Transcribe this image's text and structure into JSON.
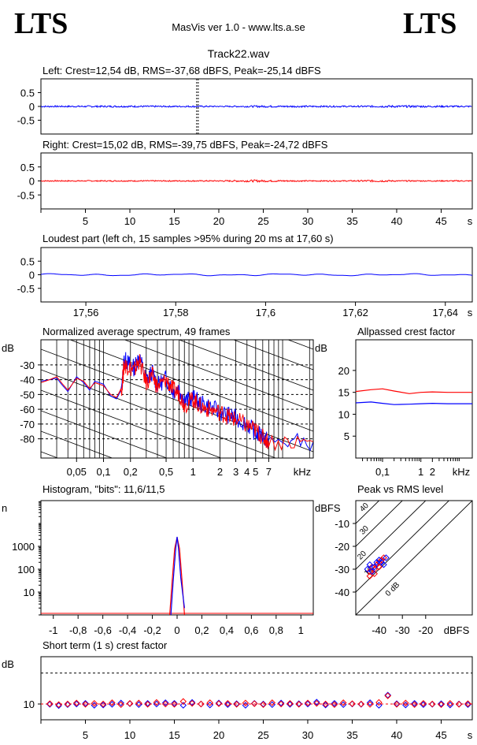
{
  "header": {
    "logo_left": "LTS",
    "logo_right": "LTS",
    "app_title": "MasVis ver 1.0 - www.lts.a.se",
    "file_name": "Track22.wav"
  },
  "chart_data": [
    {
      "type": "line",
      "id": "left",
      "title": "Left: Crest=12,54 dB, RMS=-37,68 dBFS, Peak=-25,14 dBFS",
      "yticks": [
        0.5,
        0,
        -0.5
      ],
      "ytick_labels": [
        "0.5",
        "0",
        "-0.5"
      ],
      "ylim": [
        -1,
        1
      ],
      "xlim": [
        0,
        48.5
      ],
      "envelope": {
        "x": [
          0,
          5,
          10,
          15,
          17.6,
          20,
          25,
          30,
          35,
          40,
          45,
          48.5
        ],
        "amp": [
          0.025,
          0.03,
          0.03,
          0.025,
          0.03,
          0.02,
          0.035,
          0.03,
          0.025,
          0.04,
          0.03,
          0.025
        ]
      },
      "marker_x": 17.6,
      "color": "#0000ff"
    },
    {
      "type": "line",
      "id": "right",
      "title": "Right: Crest=15,02 dB, RMS=-39,75 dBFS, Peak=-24,72 dBFS",
      "yticks": [
        0.5,
        0,
        -0.5
      ],
      "ytick_labels": [
        "0.5",
        "0",
        "-0.5"
      ],
      "ylim": [
        -1,
        1
      ],
      "xlim": [
        0,
        48.5
      ],
      "xticks": [
        5,
        10,
        15,
        20,
        25,
        30,
        35,
        40,
        45
      ],
      "xtick_labels": [
        "5",
        "10",
        "15",
        "20",
        "25",
        "30",
        "35",
        "40",
        "45"
      ],
      "xunit": "s",
      "envelope": {
        "x": [
          0,
          5,
          10,
          15,
          20,
          24,
          25,
          30,
          35,
          38,
          40,
          45,
          48.5
        ],
        "amp": [
          0.02,
          0.02,
          0.02,
          0.02,
          0.02,
          0.04,
          0.035,
          0.02,
          0.02,
          0.04,
          0.02,
          0.02,
          0.02
        ]
      },
      "color": "#ff0000"
    },
    {
      "type": "line",
      "id": "loudest",
      "title": "Loudest part (left  ch, 15 samples >95% during 20 ms at 17,60 s)",
      "yticks": [
        0.5,
        0,
        -0.5
      ],
      "ytick_labels": [
        "0.5",
        "0",
        "-0.5"
      ],
      "ylim": [
        -1,
        1
      ],
      "xlim": [
        17.55,
        17.646
      ],
      "xticks": [
        17.56,
        17.58,
        17.6,
        17.62,
        17.64
      ],
      "xtick_labels": [
        "17,56",
        "17,58",
        "17,6",
        "17,62",
        "17,64"
      ],
      "xunit": "s",
      "color": "#0000ff"
    },
    {
      "type": "line",
      "id": "spectrum",
      "title": "Normalized average spectrum, 49 frames",
      "ylabel": "dB",
      "yticks": [
        -30,
        -40,
        -50,
        -60,
        -70,
        -80
      ],
      "ytick_labels": [
        "-30",
        "-40",
        "-50",
        "-60",
        "-70",
        "-80"
      ],
      "ylim": [
        -93,
        -13
      ],
      "xscale": "log",
      "xlim": [
        0.02,
        22
      ],
      "xticks": [
        0.05,
        0.1,
        0.2,
        0.5,
        1,
        2,
        3,
        4,
        5,
        7
      ],
      "xtick_labels": [
        "0,05",
        "0,1",
        "0,2",
        "0,5",
        "1",
        "2",
        "3",
        "4",
        "5",
        "7"
      ],
      "xunit": "kHz",
      "series": [
        {
          "color": "#0000ff",
          "x": [
            0.02,
            0.025,
            0.03,
            0.035,
            0.04,
            0.05,
            0.06,
            0.07,
            0.08,
            0.1,
            0.12,
            0.14,
            0.16,
            0.17,
            0.19,
            0.22,
            0.25,
            0.3,
            0.35,
            0.4,
            0.5,
            0.6,
            0.7,
            0.8,
            1.0,
            1.2,
            1.5,
            2.0,
            2.5,
            3.0,
            4.0,
            5.0,
            6.0,
            7.0,
            22
          ],
          "y": [
            -41,
            -40,
            -39,
            -44,
            -48,
            -38,
            -42,
            -47,
            -41,
            -43,
            -51,
            -53,
            -46,
            -26,
            -29,
            -32,
            -24,
            -40,
            -35,
            -44,
            -39,
            -48,
            -46,
            -55,
            -52,
            -56,
            -58,
            -62,
            -64,
            -66,
            -70,
            -76,
            -78,
            -82,
            -82
          ]
        },
        {
          "color": "#ff0000",
          "x": [
            0.02,
            0.025,
            0.03,
            0.035,
            0.04,
            0.05,
            0.06,
            0.07,
            0.08,
            0.1,
            0.12,
            0.14,
            0.16,
            0.17,
            0.19,
            0.22,
            0.25,
            0.3,
            0.35,
            0.4,
            0.5,
            0.6,
            0.7,
            0.8,
            1.0,
            1.2,
            1.5,
            2.0,
            2.5,
            3.0,
            4.0,
            5.0,
            6.0,
            7.0,
            22
          ],
          "y": [
            -42,
            -40,
            -38,
            -43,
            -47,
            -39,
            -41,
            -46,
            -42,
            -44,
            -50,
            -52,
            -45,
            -30,
            -31,
            -34,
            -27,
            -42,
            -37,
            -45,
            -40,
            -47,
            -49,
            -57,
            -53,
            -58,
            -60,
            -62,
            -65,
            -67,
            -71,
            -74,
            -79,
            -82,
            -82
          ]
        }
      ]
    },
    {
      "type": "line",
      "id": "allpass",
      "title": "Allpassed crest factor",
      "ylabel": "dB",
      "yticks": [
        20,
        15,
        10,
        5
      ],
      "ytick_labels": [
        "20",
        "15",
        "10",
        "5"
      ],
      "ylim": [
        0,
        27
      ],
      "xscale": "log",
      "xlim": [
        0.02,
        22
      ],
      "xticks": [
        0.1,
        1,
        2
      ],
      "xtick_labels": [
        "0,1",
        "1",
        "2"
      ],
      "xunit": "kHz",
      "series": [
        {
          "color": "#ff0000",
          "x": [
            0.02,
            0.05,
            0.1,
            0.2,
            0.5,
            1,
            2,
            5,
            22
          ],
          "y": [
            15.2,
            15.6,
            15.8,
            15.3,
            14.7,
            15.0,
            15.1,
            15.0,
            15.0
          ]
        },
        {
          "color": "#0000ff",
          "x": [
            0.02,
            0.05,
            0.1,
            0.2,
            0.5,
            1,
            2,
            5,
            22
          ],
          "y": [
            12.6,
            12.8,
            12.5,
            12.2,
            12.3,
            12.4,
            12.5,
            12.4,
            12.4
          ]
        }
      ]
    },
    {
      "type": "line",
      "id": "histogram",
      "title": "Histogram, \"bits\": 11,6/11,5",
      "ylabel": "n",
      "yscale": "log",
      "yticks": [
        1000,
        100,
        10
      ],
      "ytick_labels": [
        "1000",
        "100",
        "10"
      ],
      "ylim": [
        1,
        100000
      ],
      "xlim": [
        -1.1,
        1.1
      ],
      "xticks": [
        -1,
        -0.8,
        -0.6,
        -0.4,
        -0.2,
        0,
        0.2,
        0.4,
        0.6,
        0.8,
        1
      ],
      "xtick_labels": [
        "-1",
        "-0,8",
        "-0,6",
        "-0,4",
        "-0,2",
        "0",
        "0,2",
        "0,4",
        "0,6",
        "0,8",
        "1"
      ],
      "series": [
        {
          "color": "#ff0000",
          "x": [
            -0.06,
            -0.04,
            -0.02,
            0,
            0.02,
            0.04,
            0.06
          ],
          "y": [
            1,
            30,
            800,
            2500,
            800,
            30,
            1
          ]
        },
        {
          "color": "#0000ff",
          "x": [
            -0.05,
            -0.03,
            -0.01,
            0,
            0.01,
            0.03,
            0.06
          ],
          "y": [
            1,
            40,
            900,
            2600,
            900,
            40,
            2
          ]
        }
      ]
    },
    {
      "type": "scatter",
      "id": "peak_vs_rms",
      "title": "Peak vs RMS level",
      "ylabel": "dBFS",
      "xunit": "dBFS",
      "yticks": [
        -10,
        -20,
        -30,
        -40
      ],
      "ytick_labels": [
        "-10",
        "-20",
        "-30",
        "-40"
      ],
      "ylim": [
        -50,
        0
      ],
      "xticks": [
        -40,
        -30,
        -20
      ],
      "xtick_labels": [
        "-40",
        "-30",
        "-20"
      ],
      "xlim": [
        -50,
        0
      ],
      "diag_labels": [
        "40",
        "30",
        "20",
        "10",
        "0 dB"
      ],
      "series": [
        {
          "color": "#ff0000",
          "x": [
            -44,
            -43,
            -42,
            -41,
            -40,
            -39,
            -38,
            -40,
            -42,
            -44
          ],
          "y": [
            -31,
            -29,
            -30,
            -28,
            -27,
            -26,
            -25,
            -29,
            -32,
            -33
          ]
        },
        {
          "color": "#0000ff",
          "x": [
            -45,
            -44,
            -43,
            -42,
            -41,
            -40,
            -39,
            -38,
            -37
          ],
          "y": [
            -30,
            -28,
            -31,
            -29,
            -27,
            -26,
            -27,
            -28,
            -25
          ]
        }
      ]
    },
    {
      "type": "scatter",
      "id": "short_term_crest",
      "title": "Short term (1 s) crest factor",
      "ylabel": "dB",
      "yticks": [
        10
      ],
      "ytick_labels": [
        "10"
      ],
      "ylim": [
        5,
        25
      ],
      "xlim": [
        0,
        48.5
      ],
      "xticks": [
        5,
        10,
        15,
        20,
        25,
        30,
        35,
        40,
        45
      ],
      "xtick_labels": [
        "5",
        "10",
        "15",
        "20",
        "25",
        "30",
        "35",
        "40",
        "45"
      ],
      "xunit": "s",
      "series": [
        {
          "color": "#0000ff",
          "x": [
            1,
            2,
            3,
            4,
            5,
            6,
            7,
            8,
            9,
            10,
            11,
            12,
            13,
            14,
            15,
            16,
            17,
            18,
            19,
            20,
            21,
            22,
            23,
            24,
            25,
            26,
            27,
            28,
            29,
            30,
            31,
            32,
            33,
            34,
            35,
            36,
            37,
            38,
            39,
            40,
            41,
            42,
            43,
            44,
            45,
            46,
            47,
            48
          ],
          "y": [
            9.9,
            9.5,
            9.8,
            10.0,
            10.2,
            9.6,
            9.7,
            9.9,
            10.3,
            10.1,
            9.8,
            10.2,
            10.0,
            10.4,
            10.2,
            9.6,
            10.5,
            10.0,
            9.7,
            10.3,
            9.8,
            10.1,
            9.6,
            10.2,
            10.0,
            9.8,
            10.3,
            9.9,
            10.1,
            10.0,
            10.6,
            9.7,
            10.2,
            9.8,
            10.0,
            9.9,
            10.4,
            9.6,
            12.8,
            10.1,
            9.7,
            10.2,
            9.8,
            9.9,
            10.1,
            9.7,
            10.0,
            9.8
          ]
        },
        {
          "color": "#ff0000",
          "x": [
            1,
            2,
            3,
            4,
            5,
            6,
            7,
            8,
            9,
            10,
            11,
            12,
            13,
            14,
            15,
            16,
            17,
            18,
            19,
            20,
            21,
            22,
            23,
            24,
            25,
            26,
            27,
            28,
            29,
            30,
            31,
            32,
            33,
            34,
            35,
            36,
            37,
            38,
            39,
            40,
            41,
            42,
            43,
            44,
            45,
            46,
            47,
            48
          ],
          "y": [
            10.1,
            9.8,
            10.0,
            10.3,
            9.9,
            10.2,
            10.0,
            10.4,
            9.8,
            10.2,
            10.3,
            9.9,
            10.5,
            10.0,
            9.9,
            10.8,
            10.2,
            10.0,
            10.4,
            10.1,
            10.2,
            9.9,
            10.3,
            10.1,
            9.8,
            10.4,
            10.0,
            10.2,
            9.9,
            10.3,
            10.2,
            10.0,
            9.8,
            10.4,
            10.1,
            10.0,
            9.9,
            10.5,
            12.6,
            9.9,
            10.3,
            9.8,
            10.2,
            10.0,
            9.8,
            10.2,
            9.9,
            10.1
          ]
        }
      ],
      "reference_line": 19.8
    }
  ]
}
